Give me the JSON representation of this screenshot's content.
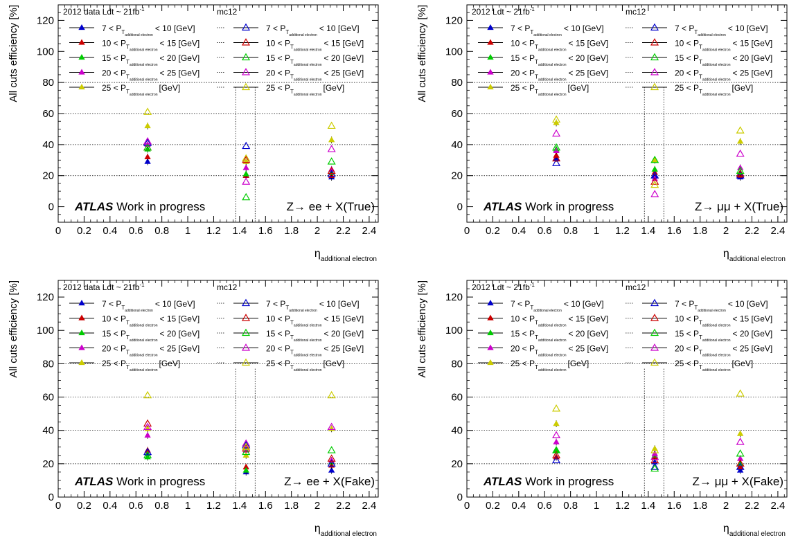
{
  "legend_labels": {
    "data_header_ee": "2012 data Ldt ~ 21fb",
    "data_header_mumu": "2012 Ldt ~ 21fb",
    "inv_sup": "-1",
    "mc_header": "mc12",
    "pt_sub": "additional electron",
    "rows": [
      {
        "lo": "7 < P",
        "hi": "< 10 [GeV]"
      },
      {
        "lo": "10 < P",
        "hi": "< 15 [GeV]"
      },
      {
        "lo": "15 < P",
        "hi": "< 20 [GeV]"
      },
      {
        "lo": "20 < P",
        "hi": "< 25 [GeV]"
      },
      {
        "lo": "25 < P",
        "hi": "[GeV]"
      }
    ],
    "T": "T"
  },
  "labels": {
    "atlas": "ATLAS",
    "work_in_progress": "Work in progress",
    "ylabel": "All cuts efficiency [%]",
    "xlabel_eta": "η",
    "xlabel_sub": "additional electron"
  },
  "colors": {
    "7-10": "#0000cc",
    "10-15": "#cc0000",
    "15-20": "#00cc00",
    "20-25": "#cc00cc",
    "25+": "#cccc00",
    "axes": "#000000"
  },
  "chart_data": [
    {
      "type": "scatter",
      "process": "Z→ ee + X(True)",
      "xlim": [
        0,
        2.47
      ],
      "ylim": [
        -10,
        130
      ],
      "xticks": [
        "0",
        "0.2",
        "0.4",
        "0.6",
        "0.8",
        "1",
        "1.2",
        "1.4",
        "1.6",
        "1.8",
        "2",
        "2.2",
        "2.4"
      ],
      "yticks": [
        "0",
        "20",
        "40",
        "60",
        "80",
        "100",
        "120"
      ],
      "grid_y": [
        20,
        40,
        60,
        80
      ],
      "x_bins": [
        0.69,
        1.45,
        2.11
      ],
      "series": [
        {
          "name": "data 7-10",
          "kind": "data",
          "color_key": "7-10",
          "values": [
            29,
            20,
            19
          ]
        },
        {
          "name": "data 10-15",
          "kind": "data",
          "color_key": "10-15",
          "values": [
            32,
            20,
            20
          ]
        },
        {
          "name": "data 15-20",
          "kind": "data",
          "color_key": "15-20",
          "values": [
            37,
            21,
            22
          ]
        },
        {
          "name": "data 20-25",
          "kind": "data",
          "color_key": "20-25",
          "values": [
            40,
            25,
            24
          ]
        },
        {
          "name": "data 25+",
          "kind": "data",
          "color_key": "25+",
          "values": [
            52,
            29,
            43
          ]
        },
        {
          "name": "mc 7-10",
          "kind": "mc",
          "color_key": "7-10",
          "values": [
            41,
            39,
            21
          ]
        },
        {
          "name": "mc 10-15",
          "kind": "mc",
          "color_key": "10-15",
          "values": [
            38,
            30,
            23
          ]
        },
        {
          "name": "mc 15-20",
          "kind": "mc",
          "color_key": "15-20",
          "values": [
            38,
            6,
            29
          ]
        },
        {
          "name": "mc 20-25",
          "kind": "mc",
          "color_key": "20-25",
          "values": [
            42,
            16,
            37
          ]
        },
        {
          "name": "mc 25+",
          "kind": "mc",
          "color_key": "25+",
          "values": [
            61,
            31,
            52
          ]
        }
      ]
    },
    {
      "type": "scatter",
      "process": "Z→ μμ + X(True)",
      "xlim": [
        0,
        2.47
      ],
      "ylim": [
        -10,
        130
      ],
      "xticks": [
        "0",
        "0.2",
        "0.4",
        "0.6",
        "0.8",
        "1",
        "1.2",
        "1.4",
        "1.6",
        "1.8",
        "2",
        "2.2",
        "2.4"
      ],
      "yticks": [
        "0",
        "20",
        "40",
        "60",
        "80",
        "100",
        "120"
      ],
      "grid_y": [
        20,
        40,
        60,
        80
      ],
      "x_bins": [
        0.69,
        1.45,
        2.11
      ],
      "series": [
        {
          "name": "data 7-10",
          "kind": "data",
          "color_key": "7-10",
          "values": [
            31,
            20,
            19
          ]
        },
        {
          "name": "data 10-15",
          "kind": "data",
          "color_key": "10-15",
          "values": [
            33,
            22,
            20
          ]
        },
        {
          "name": "data 15-20",
          "kind": "data",
          "color_key": "15-20",
          "values": [
            37,
            24,
            22
          ]
        },
        {
          "name": "data 20-25",
          "kind": "data",
          "color_key": "20-25",
          "values": [
            36,
            18,
            25
          ]
        },
        {
          "name": "data 25+",
          "kind": "data",
          "color_key": "25+",
          "values": [
            54,
            30,
            42
          ]
        },
        {
          "name": "mc 7-10",
          "kind": "mc",
          "color_key": "7-10",
          "values": [
            28,
            20,
            20
          ]
        },
        {
          "name": "mc 10-15",
          "kind": "mc",
          "color_key": "10-15",
          "values": [
            31,
            16,
            21
          ]
        },
        {
          "name": "mc 15-20",
          "kind": "mc",
          "color_key": "15-20",
          "values": [
            38,
            30,
            23
          ]
        },
        {
          "name": "mc 20-25",
          "kind": "mc",
          "color_key": "20-25",
          "values": [
            47,
            8,
            34
          ]
        },
        {
          "name": "mc 25+",
          "kind": "mc",
          "color_key": "25+",
          "values": [
            56,
            14,
            49
          ]
        }
      ]
    },
    {
      "type": "scatter",
      "process": "Z→ ee + X(Fake)",
      "xlim": [
        0,
        2.47
      ],
      "ylim": [
        0,
        130
      ],
      "xticks": [
        "0",
        "0.2",
        "0.4",
        "0.6",
        "0.8",
        "1",
        "1.2",
        "1.4",
        "1.6",
        "1.8",
        "2",
        "2.2",
        "2.4"
      ],
      "yticks": [
        "0",
        "20",
        "40",
        "60",
        "80",
        "100",
        "120"
      ],
      "grid_y": [
        20,
        40,
        60,
        80
      ],
      "x_bins": [
        0.69,
        1.45,
        2.11
      ],
      "series": [
        {
          "name": "data 7-10",
          "kind": "data",
          "color_key": "7-10",
          "values": [
            26,
            15,
            16
          ]
        },
        {
          "name": "data 10-15",
          "kind": "data",
          "color_key": "10-15",
          "values": [
            28,
            18,
            19
          ]
        },
        {
          "name": "data 15-20",
          "kind": "data",
          "color_key": "15-20",
          "values": [
            24,
            16,
            21
          ]
        },
        {
          "name": "data 20-25",
          "kind": "data",
          "color_key": "20-25",
          "values": [
            37,
            28,
            22
          ]
        },
        {
          "name": "data 25+",
          "kind": "data",
          "color_key": "25+",
          "values": [
            41,
            25,
            41
          ]
        },
        {
          "name": "mc 7-10",
          "kind": "mc",
          "color_key": "7-10",
          "values": [
            27,
            31,
            20
          ]
        },
        {
          "name": "mc 10-15",
          "kind": "mc",
          "color_key": "10-15",
          "values": [
            44,
            29,
            23
          ]
        },
        {
          "name": "mc 15-20",
          "kind": "mc",
          "color_key": "15-20",
          "values": [
            25,
            27,
            28
          ]
        },
        {
          "name": "mc 20-25",
          "kind": "mc",
          "color_key": "20-25",
          "values": [
            42,
            32,
            42
          ]
        },
        {
          "name": "mc 25+",
          "kind": "mc",
          "color_key": "25+",
          "values": [
            61,
            30,
            61
          ]
        }
      ]
    },
    {
      "type": "scatter",
      "process": "Z→ μμ + X(Fake)",
      "xlim": [
        0,
        2.47
      ],
      "ylim": [
        0,
        130
      ],
      "xticks": [
        "0",
        "0.2",
        "0.4",
        "0.6",
        "0.8",
        "1",
        "1.2",
        "1.4",
        "1.6",
        "1.8",
        "2",
        "2.2",
        "2.4"
      ],
      "yticks": [
        "0",
        "20",
        "40",
        "60",
        "80",
        "100",
        "120"
      ],
      "grid_y": [
        20,
        40,
        60,
        80
      ],
      "x_bins": [
        0.69,
        1.45,
        2.11
      ],
      "series": [
        {
          "name": "data 7-10",
          "kind": "data",
          "color_key": "7-10",
          "values": [
            24,
            21,
            16
          ]
        },
        {
          "name": "data 10-15",
          "kind": "data",
          "color_key": "10-15",
          "values": [
            24,
            24,
            18
          ]
        },
        {
          "name": "data 15-20",
          "kind": "data",
          "color_key": "15-20",
          "values": [
            28,
            25,
            20
          ]
        },
        {
          "name": "data 20-25",
          "kind": "data",
          "color_key": "20-25",
          "values": [
            33,
            26,
            23
          ]
        },
        {
          "name": "data 25+",
          "kind": "data",
          "color_key": "25+",
          "values": [
            44,
            29,
            38
          ]
        },
        {
          "name": "mc 7-10",
          "kind": "mc",
          "color_key": "7-10",
          "values": [
            22,
            18,
            18
          ]
        },
        {
          "name": "mc 10-15",
          "kind": "mc",
          "color_key": "10-15",
          "values": [
            25,
            22,
            20
          ]
        },
        {
          "name": "mc 15-20",
          "kind": "mc",
          "color_key": "15-20",
          "values": [
            28,
            17,
            26
          ]
        },
        {
          "name": "mc 20-25",
          "kind": "mc",
          "color_key": "20-25",
          "values": [
            37,
            24,
            33
          ]
        },
        {
          "name": "mc 25+",
          "kind": "mc",
          "color_key": "25+",
          "values": [
            53,
            28,
            62
          ]
        }
      ]
    }
  ]
}
